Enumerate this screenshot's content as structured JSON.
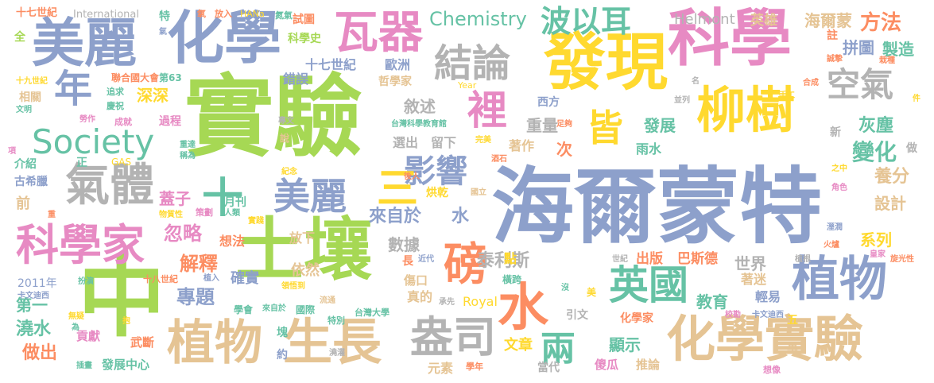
{
  "cloud": {
    "w": {
      "shiyan": "實驗",
      "haiermengte": "海爾蒙特",
      "zhong": "中",
      "turang": "土壤",
      "kexue": "科學",
      "faxian": "發現",
      "huaxue": "化學",
      "meili": "美麗",
      "waqi": "瓦器",
      "liushu": "柳樹",
      "zhiwu": "植物",
      "shengzhang": "生長",
      "kexuejia": "科學家",
      "qiti": "氣體",
      "society": "Society",
      "jielun": "結論",
      "boyier": "波以耳",
      "chemistry": "Chemistry",
      "huaxueshiyan": "化學實驗",
      "panzi": "盎司",
      "shui": "水",
      "bang": "磅",
      "yingguo": "英國",
      "kongqi": "空氣",
      "li": "裡",
      "jie": "皆",
      "yingxiang": "影響",
      "san": "三",
      "shi": "十",
      "nian": "年",
      "liang": "兩",
      "helmont": "Helmont",
      "international": "International",
      "shiqishiji": "十七世紀",
      "ouzhou": "歐洲",
      "yingxiong": "英雄",
      "haiermeng": "海爾蒙",
      "fangfa": "方法",
      "pintu": "拼圖",
      "zhizao": "製造",
      "huichen": "灰塵",
      "bianhua": "變化",
      "yangfen": "養分",
      "sheji": "設計",
      "xulie": "系列",
      "shijie": "世界",
      "jiaoyu": "教育",
      "qingyi": "輕易",
      "zhumi": "著迷",
      "chuban": "出版",
      "basideng": "巴斯德",
      "jiaoshui": "澆水",
      "zuochu": "做出",
      "gongxian": "貢獻",
      "wuduan": "武斷",
      "fazhanzhongxin": "發展中心",
      "zhuti": "專題",
      "jieshi": "解釋",
      "queshi": "確實",
      "yiran": "依然",
      "fangxia": "放下",
      "xiangfa": "想法",
      "hulue": "忽略",
      "gaizi": "蓋子",
      "yuekan": "月刊",
      "shuju": "數據",
      "laiziyu": "來自於",
      "shuism": "水",
      "tailisi": "泰利斯",
      "zhongliang": "重量",
      "xushu": "敘述",
      "fazhan": "發展",
      "xuanchu": "選出",
      "liuxia": "留下",
      "yushui": "雨水",
      "zhuzuo": "著作",
      "ci": "次",
      "honggan": "烘乾",
      "wenzhang": "文章",
      "xianshi": "顯示",
      "shaogua": "傻瓜",
      "tuilun": "推論",
      "dangdai": "當代",
      "yuansu": "元素",
      "zhende": "真的",
      "royal": "Royal",
      "yinwen": "引文",
      "huaxuejia": "化學家",
      "shangkou": "傷口",
      "dian": "點",
      "changsm": "長",
      "cuowu": "錯誤",
      "zhexuejia": "哲學家",
      "xishi": "試圖",
      "kexueshi": "科學史",
      "lianheguo": "聯合國大會",
      "di63": "第63",
      "shenshen": "深深",
      "guocheng": "過程",
      "jieshao": "介紹",
      "zheng": "正",
      "gas": "GAS",
      "guxila": "古希臘",
      "qian": "前",
      "shiji2011": "2011年",
      "diyi": "第一",
      "xiangguan": "相關",
      "shijiushiji": "十九世紀",
      "shiqishiji2": "十七世紀",
      "quan": "全",
      "te": "特",
      "xifang": "西方",
      "zhuanjia": "專文",
      "taiwankexue": "台灣科學教育館",
      "taiwandaxue": "台灣大學",
      "kuawenyuan": "卡文迪西",
      "kuawenyuan2": "卡文迪西",
      "shibashiji": "十八世紀",
      "xuehui": "學會",
      "guoji": "國際",
      "tebie": "特別",
      "yue": "約",
      "kuai": "塊",
      "jiaoguan": "澆灌",
      "xuenian": "學年",
      "xingqu": "息息",
      "yeli": "葉片",
      "hengkua": "橫跨",
      "jieji": "皆以",
      "xiangxiang": "想像",
      "shi2": "事",
      "wu": "五",
      "zhu": "註",
      "year": "Year",
      "hana": "HANa",
      "fangru": "放入",
      "yang": "氧",
      "danqi": "氮氣",
      "zhuiqiu": "追求",
      "qingzhu": "慶祝",
      "chengjiu": "成就",
      "laozuo": "勞作",
      "wenming": "文明",
      "zhongda": "重達",
      "chengwei": "稱為",
      "rulei": "人類",
      "wuzhixing": "物質性",
      "celue": "策劃",
      "shijianm": "實踐",
      "jinian": "紀念",
      "shuo": "說",
      "guoli": "國立",
      "jiuwu": "酒石",
      "houren": "後人",
      "wanmei": "完美",
      "zuluan": "足夠",
      "bingle": "並列",
      "ming": "名",
      "shougong": "手工",
      "hecheng": "合成",
      "jiaose": "角色",
      "zhizhong": "之中",
      "xin": "新",
      "zuo": "做",
      "huozhu": "火爐",
      "huangjia": "皇家",
      "xuanguang": "旋光性",
      "zhigen": "植根",
      "jiaozheng": "校勘",
      "meijing": "沒",
      "mei": "美",
      "chengshou": "承先",
      "liutong": "流通",
      "bao": "抱",
      "wushu": "無疑",
      "wei": "為",
      "chatu": "插畫",
      "banyan": "扮演",
      "zhiru": "植入",
      "laizijin": "來自於",
      "lingwu": "領悟到",
      "liushang": "流上",
      "jinhai": "近代",
      "jiange": "間接",
      "zaiqi": "栽種",
      "chengken": "誠摯",
      "pu": "蒲",
      "xing": "性",
      "ji": "件",
      "xiang": "項",
      "zhongm": "重",
      "qian2": "淺",
      "jiu": "救",
      "chuanqi": "溼潤",
      "shiji3": "世紀",
      "jiumei": "玖",
      "qi": "氣"
    }
  }
}
